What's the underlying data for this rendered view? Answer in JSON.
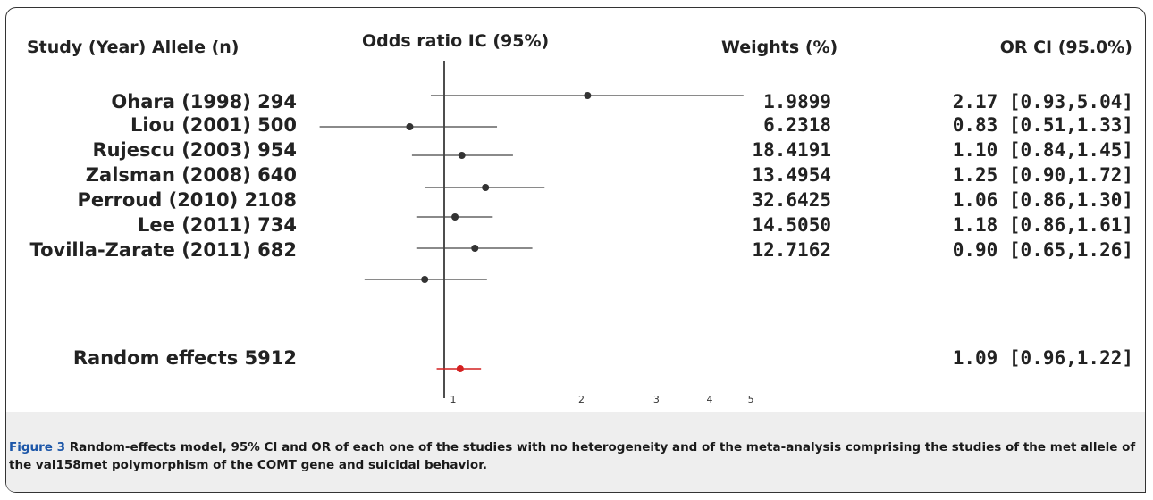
{
  "chart_data": {
    "type": "forest",
    "headers": {
      "study": "Study (Year) Allele (n)",
      "plot": "Odds ratio IC (95%)",
      "weights": "Weights (%)",
      "or_ci": "OR CI (95.0%)"
    },
    "studies": [
      {
        "label": "Ohara (1998)  294",
        "or": 2.17,
        "lower": 0.93,
        "upper": 5.04,
        "weight": "1.9899",
        "ci_text": "2.17 [0.93,5.04]"
      },
      {
        "label": "Liou (2001) 500",
        "or": 0.83,
        "lower": 0.51,
        "upper": 1.33,
        "weight": "6.2318",
        "ci_text": "0.83 [0.51,1.33]"
      },
      {
        "label": "Rujescu (2003) 954",
        "or": 1.1,
        "lower": 0.84,
        "upper": 1.45,
        "weight": "18.4191",
        "ci_text": "1.10 [0.84,1.45]"
      },
      {
        "label": "Zalsman (2008) 640",
        "or": 1.25,
        "lower": 0.9,
        "upper": 1.72,
        "weight": "13.4954",
        "ci_text": "1.25 [0.90,1.72]"
      },
      {
        "label": "Perroud (2010) 2108",
        "or": 1.06,
        "lower": 0.86,
        "upper": 1.3,
        "weight": "32.6425",
        "ci_text": "1.06 [0.86,1.30]"
      },
      {
        "label": "Lee (2011) 734",
        "or": 1.18,
        "lower": 0.86,
        "upper": 1.61,
        "weight": "14.5050",
        "ci_text": "1.18 [0.86,1.61]"
      },
      {
        "label": "Tovilla-Zarate (2011) 682",
        "or": 0.9,
        "lower": 0.65,
        "upper": 1.26,
        "weight": "12.7162",
        "ci_text": "0.90 [0.65,1.26]"
      }
    ],
    "summary": {
      "label": "Random effects 5912",
      "or": 1.09,
      "lower": 0.96,
      "upper": 1.22,
      "ci_text": "1.09 [0.96,1.22]"
    },
    "x_axis": {
      "scale": "log",
      "reference_line": 1,
      "ticks": [
        1,
        2,
        3,
        4,
        5
      ]
    },
    "colors": {
      "study_marker": "#333333",
      "summary_marker": "#d42020",
      "axis": "#222222"
    }
  },
  "caption": {
    "lead": "Figure 3",
    "text": " Random-effects model, 95% CI and OR of each one of the studies with no heterogeneity and of the meta-analysis comprising the studies of the met allele of the val158met polymorphism of the COMT gene and suicidal behavior."
  }
}
